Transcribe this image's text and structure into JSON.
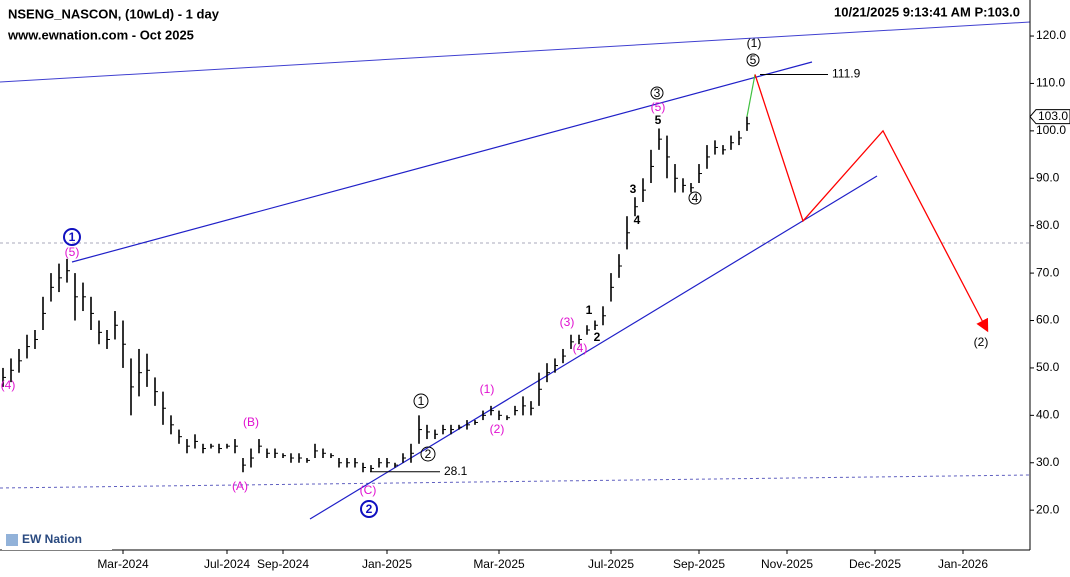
{
  "header": {
    "title": "NSENG_NASCON, (10wLd) - 1 day",
    "subtitle": "www.ewnation.com  - Oct 2025",
    "timestamp": "10/21/2025 9:13:41 AM  P:103.0",
    "logo": "EW Nation"
  },
  "chart_data": {
    "type": "hilo",
    "categories": [
      null,
      null,
      null,
      null,
      null,
      null,
      null,
      null,
      null,
      null,
      null,
      null,
      null,
      null,
      null,
      "Mar-2024",
      null,
      null,
      null,
      null,
      null,
      null,
      null,
      null,
      null,
      null,
      null,
      null,
      "Jul-2024",
      null,
      null,
      null,
      null,
      null,
      null,
      "Sep-2024",
      null,
      null,
      null,
      null,
      null,
      null,
      null,
      null,
      null,
      null,
      null,
      null,
      "Jan-2025",
      null,
      null,
      null,
      null,
      null,
      null,
      null,
      null,
      null,
      null,
      null,
      null,
      null,
      "Mar-2025",
      null,
      null,
      null,
      null,
      null,
      null,
      null,
      null,
      null,
      null,
      null,
      null,
      null,
      "Jul-2025",
      null,
      null,
      null,
      null,
      null,
      null,
      null,
      null,
      null,
      null,
      "Sep-2025",
      null,
      null,
      null,
      null,
      null,
      null,
      null,
      null,
      null,
      null,
      "Nov-2025",
      null,
      null,
      null,
      null,
      null,
      null,
      null,
      null,
      null,
      null,
      "Dec-2025",
      null,
      null,
      null,
      null,
      null,
      null,
      null,
      null,
      null,
      null,
      "Jan-2026",
      null,
      null,
      null,
      null,
      null,
      null,
      null,
      null
    ],
    "series": [
      {
        "color": "#000000",
        "values": [
          50,
          52,
          54,
          57,
          58,
          65,
          70,
          72,
          73,
          70,
          68,
          65,
          60,
          58,
          62,
          60,
          52,
          54,
          53,
          48,
          45,
          40,
          37,
          35,
          36,
          34,
          34,
          34,
          34,
          35,
          31,
          33,
          35,
          33,
          33,
          32,
          32,
          32,
          31,
          34,
          33,
          32,
          31,
          31,
          31,
          30,
          29.5,
          31,
          31,
          30,
          32,
          34,
          40,
          38,
          37,
          38,
          38,
          38,
          39,
          39,
          41,
          42,
          41,
          40,
          42,
          44,
          43,
          49,
          51,
          52,
          54,
          57,
          57,
          59,
          60,
          63,
          70,
          74,
          82,
          86,
          90,
          96,
          100.5,
          99,
          93,
          90,
          89,
          93,
          97,
          98,
          97,
          99,
          100,
          103,
          null,
          null,
          null,
          null,
          null,
          null,
          null,
          null,
          null,
          null,
          null,
          null,
          null,
          null,
          null,
          null,
          null,
          null,
          null,
          null,
          null,
          null,
          null,
          null,
          null,
          null,
          null,
          null,
          null,
          null,
          null,
          null,
          null,
          null,
          null
        ]
      },
      {
        "color": "#000000",
        "values": [
          46,
          47,
          49,
          52,
          54,
          58,
          64,
          66,
          68,
          60,
          62,
          58,
          55,
          54,
          56,
          50,
          40,
          44,
          46,
          42,
          38,
          36,
          34,
          32,
          33,
          32,
          33,
          32,
          33,
          32,
          28,
          29,
          32,
          31,
          31,
          31,
          30,
          30,
          30,
          31,
          31,
          31,
          29,
          29,
          29,
          28,
          28.1,
          29,
          29,
          29,
          30,
          30,
          34,
          35,
          35,
          36,
          36,
          37,
          37,
          38,
          39,
          40,
          39,
          39,
          40,
          40,
          40,
          42,
          47,
          49,
          51,
          54,
          55,
          57,
          58,
          59,
          64,
          69,
          75,
          82,
          85,
          89,
          96,
          90,
          87,
          87,
          87,
          89,
          92,
          95,
          95,
          96,
          97,
          100,
          null,
          null,
          null,
          null,
          null,
          null,
          null,
          null,
          null,
          null,
          null,
          null,
          null,
          null,
          null,
          null,
          null,
          null,
          null,
          null,
          null,
          null,
          null,
          null,
          null,
          null,
          null,
          null,
          null,
          null,
          null,
          null,
          null,
          null,
          null
        ]
      },
      {
        "color": "#ff0000",
        "values": [
          null,
          null,
          null,
          null,
          null,
          null,
          null,
          null,
          null,
          null,
          null,
          null,
          null,
          null,
          null,
          null,
          null,
          null,
          null,
          null,
          null,
          null,
          null,
          null,
          null,
          null,
          null,
          null,
          null,
          null,
          null,
          null,
          null,
          null,
          null,
          null,
          null,
          null,
          null,
          null,
          null,
          null,
          null,
          null,
          null,
          null,
          null,
          null,
          null,
          null,
          null,
          null,
          null,
          null,
          null,
          null,
          null,
          null,
          null,
          null,
          null,
          null,
          null,
          null,
          null,
          null,
          null,
          null,
          null,
          null,
          null,
          null,
          null,
          null,
          null,
          null,
          null,
          null,
          null,
          null,
          null,
          null,
          null,
          null,
          null,
          null,
          null,
          null,
          null,
          null,
          null,
          null,
          null,
          null,
          111.9,
          null,
          null,
          null,
          null,
          null,
          81,
          null,
          null,
          null,
          null,
          null,
          null,
          null,
          null,
          null,
          100,
          null,
          null,
          null,
          null,
          null,
          null,
          null,
          null,
          null,
          null,
          null,
          null,
          58,
          null,
          null,
          null,
          null,
          null
        ]
      }
    ],
    "ylim": [
      11.6,
      127.6
    ],
    "yticks": [
      {
        "value": 20,
        "label": "20.0"
      },
      {
        "value": 30,
        "label": "30.0"
      },
      {
        "value": 40,
        "label": "40.0"
      },
      {
        "value": 50,
        "label": "50.0"
      },
      {
        "value": 60,
        "label": "60.0"
      },
      {
        "value": 70,
        "label": "70.0"
      },
      {
        "value": 80,
        "label": "80.0"
      },
      {
        "value": 90,
        "label": "90.0"
      },
      {
        "value": 100,
        "label": "100.0"
      },
      {
        "value": 110,
        "label": "110.0"
      },
      {
        "value": 120,
        "label": "120.0"
      }
    ],
    "last_price": {
      "value": 103,
      "label": "103.0"
    },
    "levels": [
      111.9,
      28.1
    ],
    "annotations": [
      "(1)",
      "5",
      "3",
      "(5)",
      "5",
      "3",
      "4",
      "4",
      "1",
      "2",
      "(3)",
      "(4)",
      "(1)",
      "(2)",
      "1",
      "2",
      "(B)",
      "(A)",
      "(C)",
      "2",
      "1",
      "(5)",
      "(4)",
      "(2)"
    ]
  }
}
